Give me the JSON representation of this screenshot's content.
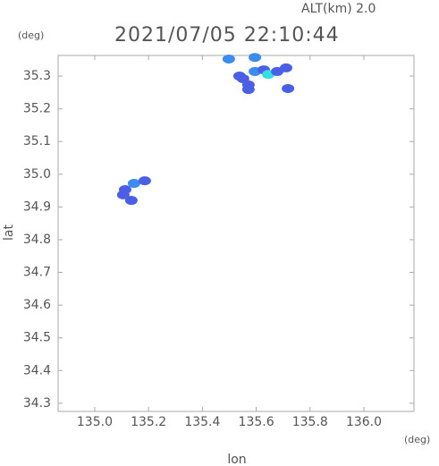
{
  "chart_data": {
    "type": "scatter",
    "title": "2021/07/05 22:10:44",
    "subtitle": "ALT(km) 2.0",
    "y_unit": "(deg)",
    "x_unit": "(deg)",
    "x_label": "lon",
    "y_label": "lat",
    "xlim": [
      134.864,
      136.186
    ],
    "ylim": [
      34.275,
      35.363
    ],
    "xticks": [
      {
        "value": 135,
        "label": "135.0"
      },
      135.2,
      135.4,
      135.6,
      135.8,
      {
        "value": 136,
        "label": "136.0"
      }
    ],
    "yticks": [
      34.3,
      34.4,
      34.5,
      34.6,
      34.7,
      34.8,
      34.9,
      {
        "value": 35,
        "label": "35.0"
      },
      35.1,
      35.2,
      35.3
    ],
    "series": [
      {
        "name": null,
        "x": [
          135.551,
          135.538,
          135.571,
          135.595,
          135.628,
          135.645,
          135.678,
          135.711,
          135.718,
          135.498,
          135.595,
          135.571,
          135.113,
          135.106,
          135.146,
          135.186,
          135.136
        ],
        "values": [
          35.292,
          35.3,
          35.273,
          35.314,
          35.319,
          35.305,
          35.314,
          35.325,
          35.262,
          35.352,
          35.357,
          35.259,
          34.953,
          34.937,
          34.972,
          34.98,
          34.92
        ],
        "colors": [
          "#4a5fe6",
          "#4a5fe6",
          "#4a5fe6",
          "#3c8cf0",
          "#4a5fe6",
          "#33e0e0",
          "#4a5fe6",
          "#4a5fe6",
          "#4a5fe6",
          "#3c8cf0",
          "#3c8cf0",
          "#4a5fe6",
          "#4a5fe6",
          "#4a5fe6",
          "#3c8cf0",
          "#4a5fe6",
          "#4a5fe6"
        ]
      }
    ]
  }
}
